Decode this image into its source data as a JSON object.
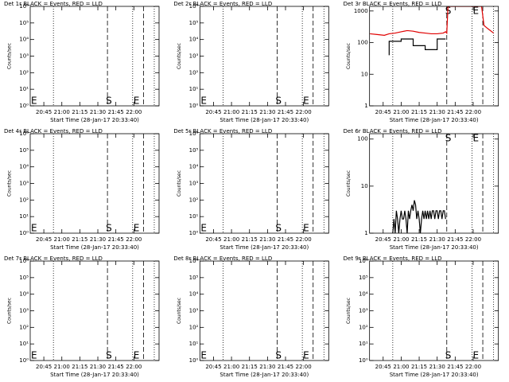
{
  "chart_data": [
    {
      "type": "line",
      "title": "Det 1r BLACK = Events, RED = LLD",
      "ylabel": "Counts/sec",
      "xlabel": "Start Time (28-Jan-17 20:33:40)",
      "log_y": true,
      "xlim": [
        "20:33:40",
        "22:21"
      ],
      "ylim": [
        1,
        1000000
      ],
      "xticks": [
        "20:45",
        "21:00",
        "21:15",
        "21:30",
        "21:45",
        "22:00"
      ],
      "yticks": [
        {
          "value": 1,
          "label": "10⁰"
        },
        {
          "value": 10,
          "label": "10¹"
        },
        {
          "value": 100,
          "label": "10²"
        },
        {
          "value": 1000,
          "label": "10³"
        },
        {
          "value": 10000,
          "label": "10⁴"
        },
        {
          "value": 100000,
          "label": "10⁵"
        },
        {
          "value": 1000000,
          "label": "10⁶"
        }
      ],
      "vlines": [
        {
          "x": "20:53",
          "style": "dotted"
        },
        {
          "x": "21:38",
          "style": "dashed"
        },
        {
          "x": "21:59",
          "style": "dotted"
        },
        {
          "x": "22:08",
          "style": "dashed"
        },
        {
          "x": "22:17",
          "style": "dotted"
        }
      ],
      "annotations": [
        {
          "x": "20:33:40",
          "text": "E",
          "position": "bottom"
        },
        {
          "x": "21:36",
          "text": "S",
          "position": "bottom"
        },
        {
          "x": "21:59",
          "text": "E",
          "position": "bottom"
        }
      ],
      "series": []
    },
    {
      "type": "line",
      "title": "Det 2r BLACK = Events, RED = LLD",
      "ylabel": "Counts/sec",
      "xlabel": "Start Time (28-Jan-17 20:33:40)",
      "log_y": true,
      "xlim": [
        "20:33:40",
        "22:21"
      ],
      "ylim": [
        1,
        1000000
      ],
      "xticks": [
        "20:45",
        "21:00",
        "21:15",
        "21:30",
        "21:45",
        "22:00"
      ],
      "yticks": [
        {
          "value": 1,
          "label": "10⁰"
        },
        {
          "value": 10,
          "label": "10¹"
        },
        {
          "value": 100,
          "label": "10²"
        },
        {
          "value": 1000,
          "label": "10³"
        },
        {
          "value": 10000,
          "label": "10⁴"
        },
        {
          "value": 100000,
          "label": "10⁵"
        },
        {
          "value": 1000000,
          "label": "10⁶"
        }
      ],
      "vlines": [
        {
          "x": "20:53",
          "style": "dotted"
        },
        {
          "x": "21:38",
          "style": "dashed"
        },
        {
          "x": "21:59",
          "style": "dotted"
        },
        {
          "x": "22:08",
          "style": "dashed"
        },
        {
          "x": "22:17",
          "style": "dotted"
        }
      ],
      "annotations": [
        {
          "x": "20:33:40",
          "text": "E",
          "position": "bottom"
        },
        {
          "x": "21:36",
          "text": "S",
          "position": "bottom"
        },
        {
          "x": "21:59",
          "text": "E",
          "position": "bottom"
        }
      ],
      "series": []
    },
    {
      "type": "line",
      "title": "Det 3r BLACK = Events, RED = LLD",
      "ylabel": "Counts/sec",
      "xlabel": "Start Time (28-Jan-17 20:33:40)",
      "log_y": true,
      "xlim": [
        "20:33:40",
        "22:21"
      ],
      "ylim": [
        1,
        1400
      ],
      "xticks": [
        "20:45",
        "21:00",
        "21:15",
        "21:30",
        "21:45",
        "22:00"
      ],
      "yticks": [
        1,
        10,
        100,
        1000
      ],
      "vlines": [
        {
          "x": "20:53",
          "style": "dotted"
        },
        {
          "x": "21:38",
          "style": "dashed"
        },
        {
          "x": "21:59",
          "style": "dotted"
        },
        {
          "x": "22:08",
          "style": "dashed"
        },
        {
          "x": "22:17",
          "style": "dotted"
        }
      ],
      "annotations": [
        {
          "x": "21:36",
          "text": "S",
          "position": "top"
        },
        {
          "x": "21:59",
          "text": "E",
          "position": "top"
        }
      ],
      "series": [
        {
          "name": "LLD",
          "color": "#e00000",
          "x": [
            "20:34",
            "20:40",
            "20:46",
            "20:50",
            "20:55",
            "21:00",
            "21:05",
            "21:10",
            "21:15",
            "21:20",
            "21:25",
            "21:30",
            "21:35",
            "21:37",
            "21:38",
            "21:39",
            "22:07",
            "22:09",
            "22:12",
            "22:17"
          ],
          "values": [
            190,
            180,
            170,
            190,
            200,
            220,
            240,
            230,
            210,
            200,
            190,
            190,
            200,
            220,
            200,
            1400,
            1400,
            350,
            280,
            200
          ]
        },
        {
          "name": "Events",
          "color": "#000000",
          "x": [
            "20:50",
            "20:50",
            "21:00",
            "21:00",
            "21:10",
            "21:10",
            "21:20",
            "21:20",
            "21:30",
            "21:30",
            "21:37"
          ],
          "values": [
            40,
            110,
            110,
            130,
            130,
            80,
            80,
            60,
            60,
            130,
            130
          ]
        }
      ]
    },
    {
      "type": "line",
      "title": "Det 4r BLACK = Events, RED = LLD",
      "ylabel": "Counts/sec",
      "xlabel": "Start Time (28-Jan-17 20:33:40)",
      "log_y": true,
      "xlim": [
        "20:33:40",
        "22:21"
      ],
      "ylim": [
        1,
        1000000
      ],
      "xticks": [
        "20:45",
        "21:00",
        "21:15",
        "21:30",
        "21:45",
        "22:00"
      ],
      "yticks": [
        {
          "value": 1,
          "label": "10⁰"
        },
        {
          "value": 10,
          "label": "10¹"
        },
        {
          "value": 100,
          "label": "10²"
        },
        {
          "value": 1000,
          "label": "10³"
        },
        {
          "value": 10000,
          "label": "10⁴"
        },
        {
          "value": 100000,
          "label": "10⁵"
        },
        {
          "value": 1000000,
          "label": "10⁶"
        }
      ],
      "vlines": [
        {
          "x": "20:53",
          "style": "dotted"
        },
        {
          "x": "21:38",
          "style": "dashed"
        },
        {
          "x": "21:59",
          "style": "dotted"
        },
        {
          "x": "22:08",
          "style": "dashed"
        },
        {
          "x": "22:17",
          "style": "dotted"
        }
      ],
      "annotations": [
        {
          "x": "20:33:40",
          "text": "E",
          "position": "bottom"
        },
        {
          "x": "21:36",
          "text": "S",
          "position": "bottom"
        },
        {
          "x": "21:59",
          "text": "E",
          "position": "bottom"
        }
      ],
      "series": []
    },
    {
      "type": "line",
      "title": "Det 5r BLACK = Events, RED = LLD",
      "ylabel": "Counts/sec",
      "xlabel": "Start Time (28-Jan-17 20:33:40)",
      "log_y": true,
      "xlim": [
        "20:33:40",
        "22:21"
      ],
      "ylim": [
        1,
        1000000
      ],
      "xticks": [
        "20:45",
        "21:00",
        "21:15",
        "21:30",
        "21:45",
        "22:00"
      ],
      "yticks": [
        {
          "value": 1,
          "label": "10⁰"
        },
        {
          "value": 10,
          "label": "10¹"
        },
        {
          "value": 100,
          "label": "10²"
        },
        {
          "value": 1000,
          "label": "10³"
        },
        {
          "value": 10000,
          "label": "10⁴"
        },
        {
          "value": 100000,
          "label": "10⁵"
        },
        {
          "value": 1000000,
          "label": "10⁶"
        }
      ],
      "vlines": [
        {
          "x": "20:53",
          "style": "dotted"
        },
        {
          "x": "21:38",
          "style": "dashed"
        },
        {
          "x": "21:59",
          "style": "dotted"
        },
        {
          "x": "22:08",
          "style": "dashed"
        },
        {
          "x": "22:17",
          "style": "dotted"
        }
      ],
      "annotations": [
        {
          "x": "20:33:40",
          "text": "E",
          "position": "bottom"
        },
        {
          "x": "21:36",
          "text": "S",
          "position": "bottom"
        },
        {
          "x": "21:59",
          "text": "E",
          "position": "bottom"
        }
      ],
      "series": []
    },
    {
      "type": "line",
      "title": "Det 6r BLACK = Events, RED = LLD",
      "ylabel": "Counts/sec",
      "xlabel": "Start Time (28-Jan-17 20:33:40)",
      "log_y": true,
      "xlim": [
        "20:33:40",
        "22:21"
      ],
      "ylim": [
        1,
        130
      ],
      "xticks": [
        "20:45",
        "21:00",
        "21:15",
        "21:30",
        "21:45",
        "22:00"
      ],
      "yticks": [
        1,
        10,
        100
      ],
      "vlines": [
        {
          "x": "20:53",
          "style": "dotted"
        },
        {
          "x": "21:38",
          "style": "dashed"
        },
        {
          "x": "21:59",
          "style": "dotted"
        },
        {
          "x": "22:08",
          "style": "dashed"
        },
        {
          "x": "22:17",
          "style": "dotted"
        }
      ],
      "annotations": [
        {
          "x": "21:36",
          "text": "S",
          "position": "top"
        },
        {
          "x": "21:59",
          "text": "E",
          "position": "top"
        }
      ],
      "series": [
        {
          "name": "Events",
          "color": "#000000",
          "x": [
            "20:53",
            "20:54",
            "20:55",
            "20:56",
            "20:57",
            "20:58",
            "20:59",
            "21:00",
            "21:01",
            "21:02",
            "21:03",
            "21:04",
            "21:05",
            "21:06",
            "21:07",
            "21:08",
            "21:09",
            "21:10",
            "21:11",
            "21:12",
            "21:13",
            "21:14",
            "21:15",
            "21:16",
            "21:17",
            "21:18",
            "21:19",
            "21:20",
            "21:21",
            "21:22",
            "21:23",
            "21:24",
            "21:25",
            "21:26",
            "21:27",
            "21:28",
            "21:29",
            "21:30",
            "21:31",
            "21:32",
            "21:33",
            "21:34",
            "21:35",
            "21:36",
            "21:37"
          ],
          "values": [
            1,
            2,
            1,
            3,
            2,
            1,
            2,
            3,
            2,
            2,
            3,
            2,
            1,
            3,
            2,
            3,
            4,
            3,
            5,
            4,
            2,
            3,
            2,
            1,
            2,
            3,
            2,
            3,
            2,
            3,
            2,
            3,
            2,
            3,
            3,
            2,
            3,
            3,
            2,
            3,
            3,
            2,
            3,
            3,
            2
          ]
        }
      ]
    },
    {
      "type": "line",
      "title": "Det 7r BLACK = Events, RED = LLD",
      "ylabel": "Counts/sec",
      "xlabel": "Start Time (28-Jan-17 20:33:40)",
      "log_y": true,
      "xlim": [
        "20:33:40",
        "22:21"
      ],
      "ylim": [
        1,
        1000000
      ],
      "xticks": [
        "20:45",
        "21:00",
        "21:15",
        "21:30",
        "21:45",
        "22:00"
      ],
      "yticks": [
        {
          "value": 1,
          "label": "10⁰"
        },
        {
          "value": 10,
          "label": "10¹"
        },
        {
          "value": 100,
          "label": "10²"
        },
        {
          "value": 1000,
          "label": "10³"
        },
        {
          "value": 10000,
          "label": "10⁴"
        },
        {
          "value": 100000,
          "label": "10⁵"
        },
        {
          "value": 1000000,
          "label": "10⁶"
        }
      ],
      "vlines": [
        {
          "x": "20:53",
          "style": "dotted"
        },
        {
          "x": "21:38",
          "style": "dashed"
        },
        {
          "x": "21:59",
          "style": "dotted"
        },
        {
          "x": "22:08",
          "style": "dashed"
        },
        {
          "x": "22:17",
          "style": "dotted"
        }
      ],
      "annotations": [
        {
          "x": "20:33:40",
          "text": "E",
          "position": "bottom"
        },
        {
          "x": "21:36",
          "text": "S",
          "position": "bottom"
        },
        {
          "x": "21:59",
          "text": "E",
          "position": "bottom"
        }
      ],
      "series": []
    },
    {
      "type": "line",
      "title": "Det 8r BLACK = Events, RED = LLD",
      "ylabel": "Counts/sec",
      "xlabel": "Start Time (28-Jan-17 20:33:40)",
      "log_y": true,
      "xlim": [
        "20:33:40",
        "22:21"
      ],
      "ylim": [
        1,
        1000000
      ],
      "xticks": [
        "20:45",
        "21:00",
        "21:15",
        "21:30",
        "21:45",
        "22:00"
      ],
      "yticks": [
        {
          "value": 1,
          "label": "10⁰"
        },
        {
          "value": 10,
          "label": "10¹"
        },
        {
          "value": 100,
          "label": "10²"
        },
        {
          "value": 1000,
          "label": "10³"
        },
        {
          "value": 10000,
          "label": "10⁴"
        },
        {
          "value": 100000,
          "label": "10⁵"
        },
        {
          "value": 1000000,
          "label": "10⁶"
        }
      ],
      "vlines": [
        {
          "x": "20:53",
          "style": "dotted"
        },
        {
          "x": "21:38",
          "style": "dashed"
        },
        {
          "x": "21:59",
          "style": "dotted"
        },
        {
          "x": "22:08",
          "style": "dashed"
        },
        {
          "x": "22:17",
          "style": "dotted"
        }
      ],
      "annotations": [
        {
          "x": "20:33:40",
          "text": "E",
          "position": "bottom"
        },
        {
          "x": "21:36",
          "text": "S",
          "position": "bottom"
        },
        {
          "x": "21:59",
          "text": "E",
          "position": "bottom"
        }
      ],
      "series": []
    },
    {
      "type": "line",
      "title": "Det 9r BLACK = Events, RED = LLD",
      "ylabel": "Counts/sec",
      "xlabel": "Start Time (28-Jan-17 20:33:40)",
      "log_y": true,
      "xlim": [
        "20:33:40",
        "22:21"
      ],
      "ylim": [
        1,
        1000000
      ],
      "xticks": [
        "20:45",
        "21:00",
        "21:15",
        "21:30",
        "21:45",
        "22:00"
      ],
      "yticks": [
        {
          "value": 1,
          "label": "10⁰"
        },
        {
          "value": 10,
          "label": "10¹"
        },
        {
          "value": 100,
          "label": "10²"
        },
        {
          "value": 1000,
          "label": "10³"
        },
        {
          "value": 10000,
          "label": "10⁴"
        },
        {
          "value": 100000,
          "label": "10⁵"
        },
        {
          "value": 1000000,
          "label": "10⁶"
        }
      ],
      "vlines": [
        {
          "x": "20:53",
          "style": "dotted"
        },
        {
          "x": "21:38",
          "style": "dashed"
        },
        {
          "x": "21:59",
          "style": "dotted"
        },
        {
          "x": "22:08",
          "style": "dashed"
        },
        {
          "x": "22:17",
          "style": "dotted"
        }
      ],
      "annotations": [
        {
          "x": "21:36",
          "text": "S",
          "position": "bottom"
        },
        {
          "x": "21:59",
          "text": "E",
          "position": "bottom"
        }
      ],
      "series": []
    }
  ]
}
